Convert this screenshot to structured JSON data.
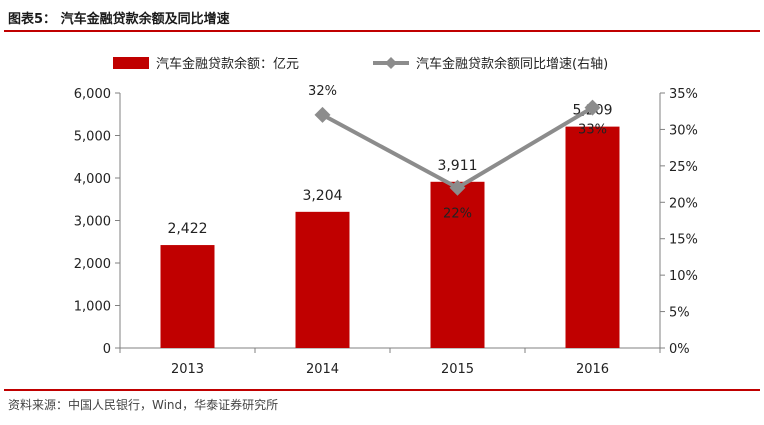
{
  "figure": {
    "title": "图表5： 汽车金融贷款余额及同比增速",
    "source": "资料来源：中国人民银行，Wind，华泰证券研究所"
  },
  "colors": {
    "bar": "#c00000",
    "line": "#8c8c8c",
    "rule": "#c00000"
  },
  "chart_data": {
    "type": "bar",
    "title": "",
    "categories": [
      "2013",
      "2014",
      "2015",
      "2016"
    ],
    "series": [
      {
        "name": "汽车金融贷款余额：亿元",
        "kind": "bar",
        "axis": "left",
        "values": [
          2422,
          3204,
          3911,
          5209
        ],
        "labels": [
          "2,422",
          "3,204",
          "3,911",
          "5,209"
        ]
      },
      {
        "name": "汽车金融贷款余额同比增速(右轴)",
        "kind": "line",
        "axis": "right",
        "values": [
          null,
          32,
          22,
          33
        ],
        "labels": [
          "",
          "32%",
          "22%",
          "33%"
        ]
      }
    ],
    "left_axis": {
      "min": 0,
      "max": 6000,
      "ticks": [
        0,
        1000,
        2000,
        3000,
        4000,
        5000,
        6000
      ],
      "tick_labels": [
        "0",
        "1,000",
        "2,000",
        "3,000",
        "4,000",
        "5,000",
        "6,000"
      ]
    },
    "right_axis": {
      "min": 0,
      "max": 35,
      "ticks": [
        0,
        5,
        10,
        15,
        20,
        25,
        30,
        35
      ],
      "tick_labels": [
        "0%",
        "5%",
        "10%",
        "15%",
        "20%",
        "25%",
        "30%",
        "35%"
      ]
    },
    "grid": false,
    "legend_position": "top"
  }
}
